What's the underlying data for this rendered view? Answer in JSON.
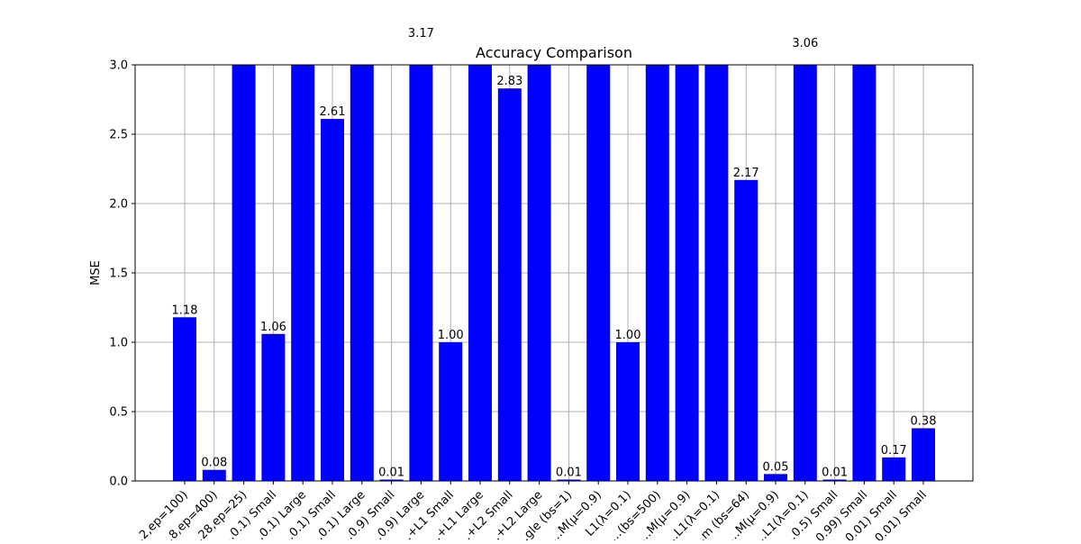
{
  "chart_data": {
    "type": "bar",
    "title": "Accuracy Comparison",
    "xlabel": "",
    "ylabel": "MSE",
    "ylim": [
      0,
      3.0
    ],
    "yticks": [
      "0.0",
      "0.5",
      "1.0",
      "1.5",
      "2.0",
      "2.5",
      "3.0"
    ],
    "grid": true,
    "bar_color": "#0000ff",
    "categories": [
      "…2,ep=100)",
      "…8,ep=400)",
      "…28,ep=25)",
      "…0.1) Small",
      "…0.1) Large",
      "…0.1) Small",
      "…0.1) Large",
      "…0.9) Small",
      "…0.9) Large",
      "…+L1 Small",
      "…+L1 Large",
      "…+L2 Small",
      "…+L2 Large",
      "…gle (bs=1)",
      "…M(μ=0.9)",
      "L1(λ=0.1)",
      "…(bs=500)",
      "…M(μ=0.9)",
      "…L1(λ=0.1)",
      "…m (bs=64)",
      "…M(μ=0.9)",
      "…L1(λ=0.1)",
      "…0.5) Small",
      "…0.99) Small",
      "…0.01) Small",
      "…0.01) Small"
    ],
    "values": [
      1.18,
      0.08,
      3.0,
      1.06,
      3.0,
      2.61,
      3.0,
      0.01,
      3.17,
      1.0,
      3.0,
      2.83,
      3.0,
      0.01,
      3.0,
      1.0,
      3.0,
      3.0,
      3.0,
      2.17,
      0.05,
      3.06,
      0.01,
      3.0,
      0.17,
      0.38
    ],
    "value_labels": [
      "1.18",
      "0.08",
      "",
      "1.06",
      "",
      "2.61",
      "",
      "0.01",
      "3.17",
      "1.00",
      "",
      "2.83",
      "",
      "0.01",
      "",
      "1.00",
      "",
      "",
      "",
      "2.17",
      "0.05",
      "3.06",
      "0.01",
      "",
      "0.17",
      "0.38"
    ]
  }
}
